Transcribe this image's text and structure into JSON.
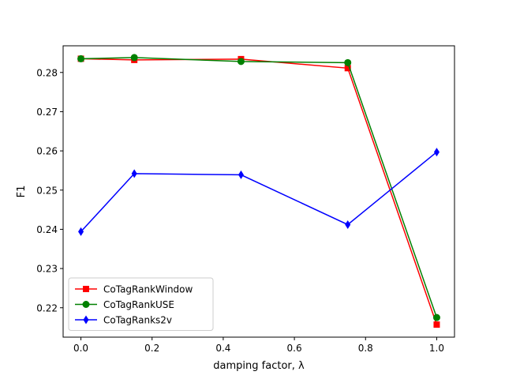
{
  "chart_data": {
    "type": "line",
    "title": "",
    "xlabel": "damping factor, λ",
    "ylabel": "F1",
    "xlim": [
      -0.05,
      1.05
    ],
    "ylim": [
      0.2125,
      0.2868
    ],
    "xticks": [
      0.0,
      0.2,
      0.4,
      0.6,
      0.8,
      1.0
    ],
    "xtick_labels": [
      "0.0",
      "0.2",
      "0.4",
      "0.6",
      "0.8",
      "1.0"
    ],
    "yticks": [
      0.22,
      0.23,
      0.24,
      0.25,
      0.26,
      0.27,
      0.28
    ],
    "ytick_labels": [
      "0.22",
      "0.23",
      "0.24",
      "0.25",
      "0.26",
      "0.27",
      "0.28"
    ],
    "grid": false,
    "legend_position": "lower-left",
    "series": [
      {
        "name": "CoTagRankWindow",
        "color": "#ff0000",
        "marker": "square",
        "x": [
          0.0,
          0.15,
          0.45,
          0.75,
          1.0
        ],
        "y": [
          0.2835,
          0.2832,
          0.2834,
          0.2811,
          0.2157
        ]
      },
      {
        "name": "CoTagRankUSE",
        "color": "#008000",
        "marker": "circle",
        "x": [
          0.0,
          0.15,
          0.45,
          0.75,
          1.0
        ],
        "y": [
          0.2835,
          0.2838,
          0.2828,
          0.2825,
          0.2175
        ]
      },
      {
        "name": "CoTagRanks2v",
        "color": "#0000ff",
        "marker": "diamond",
        "x": [
          0.0,
          0.15,
          0.45,
          0.75,
          1.0
        ],
        "y": [
          0.2394,
          0.2542,
          0.2539,
          0.2412,
          0.2597
        ]
      }
    ]
  }
}
